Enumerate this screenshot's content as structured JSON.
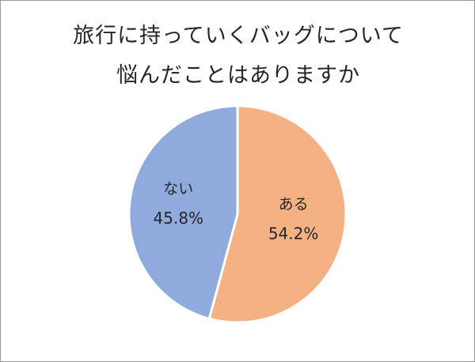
{
  "chart_data": {
    "type": "pie",
    "title_lines": [
      "旅行に持っていくバッグについて",
      "悩んだことはありますか"
    ],
    "slices": [
      {
        "label": "ある",
        "value": 54.2,
        "value_label": "54.2%",
        "color": "#F4B183"
      },
      {
        "label": "ない",
        "value": 45.8,
        "value_label": "45.8%",
        "color": "#8FAADC"
      }
    ],
    "start_angle_deg": 0,
    "direction": "clockwise",
    "legend": "none",
    "slice_border_color": "#ffffff"
  }
}
